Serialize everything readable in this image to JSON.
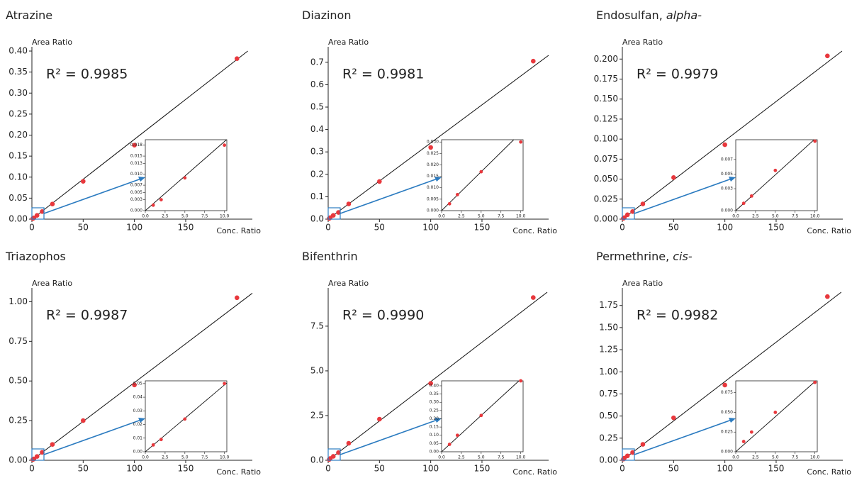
{
  "chart_data": [
    {
      "type": "scatter",
      "title": "Atrazine",
      "y_label": "Area Ratio",
      "x_label": "Conc. Ratio",
      "annotation": "R² = 0.9985",
      "color": "#e8383d",
      "x": [
        1,
        2,
        5,
        10,
        20,
        50,
        100,
        200
      ],
      "values": [
        0.0015,
        0.003,
        0.009,
        0.018,
        0.036,
        0.09,
        0.176,
        0.382
      ],
      "fit_slope": 0.0019,
      "xlim": [
        0,
        215
      ],
      "xticks": [
        0,
        50,
        100,
        150
      ],
      "ylim": [
        0,
        0.4
      ],
      "yticks": [
        {
          "value": 0,
          "label": "0.00"
        },
        0.05,
        {
          "value": 0.1,
          "label": "0.10"
        },
        0.15,
        {
          "value": 0.2,
          "label": "0.20"
        },
        0.25,
        {
          "value": 0.3,
          "label": "0.30"
        },
        0.35,
        {
          "value": 0.4,
          "label": "0.40"
        }
      ],
      "inset": {
        "xlim": [
          0,
          10.3
        ],
        "xticks": [
          {
            "value": 0,
            "label": "0.0"
          },
          2.5,
          {
            "value": 5,
            "label": "5.0"
          },
          7.5,
          {
            "value": 10,
            "label": "10.0"
          }
        ],
        "ylim": [
          0,
          0.0195
        ],
        "yticks": [
          {
            "value": 0,
            "label": "0.000"
          },
          0.003,
          0.005,
          0.007,
          {
            "value": 0.01,
            "label": "0.010"
          },
          0.013,
          0.015,
          0.018
        ]
      }
    },
    {
      "type": "scatter",
      "title": "Diazinon",
      "y_label": "Area Ratio",
      "x_label": "Conc. Ratio",
      "annotation": "R² = 0.9981",
      "color": "#e8383d",
      "x": [
        1,
        2,
        5,
        10,
        20,
        50,
        100,
        200
      ],
      "values": [
        0.003,
        0.007,
        0.017,
        0.03,
        0.068,
        0.168,
        0.32,
        0.705
      ],
      "fit_slope": 0.0034,
      "xlim": [
        0,
        215
      ],
      "xticks": [
        0,
        50,
        100,
        150
      ],
      "ylim": [
        0,
        0.75
      ],
      "yticks": [
        {
          "value": 0,
          "label": "0.0"
        },
        0.1,
        0.2,
        0.3,
        0.4,
        0.5,
        0.6,
        0.7
      ],
      "inset": {
        "xlim": [
          0,
          10.3
        ],
        "xticks": [
          {
            "value": 0,
            "label": "0.0"
          },
          2.5,
          {
            "value": 5,
            "label": "5.0"
          },
          7.5,
          {
            "value": 10,
            "label": "10.0"
          }
        ],
        "ylim": [
          0,
          0.031
        ],
        "yticks": [
          {
            "value": 0,
            "label": "0.000"
          },
          0.005,
          {
            "value": 0.01,
            "label": "0.010"
          },
          0.015,
          {
            "value": 0.02,
            "label": "0.020"
          },
          0.025,
          {
            "value": 0.03,
            "label": "0.030"
          }
        ]
      }
    },
    {
      "type": "scatter",
      "title": "Endosulfan, ",
      "title_italic": "alpha-",
      "y_label": "Area Ratio",
      "x_label": "Conc. Ratio",
      "annotation": "R² = 0.9979",
      "color": "#e8383d",
      "x": [
        1,
        2,
        5,
        10,
        20,
        50,
        100,
        200
      ],
      "values": [
        0.001,
        0.002,
        0.0055,
        0.0095,
        0.019,
        0.052,
        0.093,
        0.204
      ],
      "fit_slope": 0.00098,
      "xlim": [
        0,
        215
      ],
      "xticks": [
        0,
        50,
        100,
        150
      ],
      "ylim": [
        0,
        0.21
      ],
      "yticks": [
        {
          "value": 0,
          "label": "0.000"
        },
        0.025,
        {
          "value": 0.05,
          "label": "0.050"
        },
        0.075,
        {
          "value": 0.1,
          "label": "0.100"
        },
        0.125,
        {
          "value": 0.15,
          "label": "0.150"
        },
        0.175,
        {
          "value": 0.2,
          "label": "0.200"
        }
      ],
      "inset": {
        "xlim": [
          0,
          10.3
        ],
        "xticks": [
          {
            "value": 0,
            "label": "0.0"
          },
          2.5,
          {
            "value": 5,
            "label": "5.0"
          },
          7.5,
          {
            "value": 10,
            "label": "10.0"
          }
        ],
        "ylim": [
          0,
          0.0097
        ],
        "yticks": [
          {
            "value": 0,
            "label": "0.000"
          },
          0.003,
          0.005,
          0.007
        ]
      }
    },
    {
      "type": "scatter",
      "title": "Triazophos",
      "y_label": "Area Ratio",
      "x_label": "Conc. Ratio",
      "annotation": "R² = 0.9987",
      "color": "#e8383d",
      "x": [
        1,
        2,
        5,
        10,
        20,
        50,
        100,
        200
      ],
      "values": [
        0.005,
        0.009,
        0.024,
        0.05,
        0.1,
        0.25,
        0.475,
        1.025
      ],
      "fit_slope": 0.0049,
      "xlim": [
        0,
        215
      ],
      "xticks": [
        0,
        50,
        100,
        150
      ],
      "ylim": [
        0,
        1.06
      ],
      "yticks": [
        {
          "value": 0,
          "label": "0.00"
        },
        0.25,
        {
          "value": 0.5,
          "label": "0.50"
        },
        0.75,
        {
          "value": 1,
          "label": "1.00"
        }
      ],
      "inset": {
        "xlim": [
          0,
          10.3
        ],
        "xticks": [
          {
            "value": 0,
            "label": "0.0"
          },
          2.5,
          {
            "value": 5,
            "label": "5.0"
          },
          7.5,
          {
            "value": 10,
            "label": "10.0"
          }
        ],
        "ylim": [
          0,
          0.052
        ],
        "yticks": [
          {
            "value": 0,
            "label": "0.00"
          },
          0.01,
          0.02,
          0.03,
          0.04,
          0.05
        ]
      }
    },
    {
      "type": "scatter",
      "title": "Bifenthrin",
      "y_label": "Area Ratio",
      "x_label": "Conc. Ratio",
      "annotation": "R² = 0.9990",
      "color": "#e8383d",
      "x": [
        1,
        2,
        5,
        10,
        20,
        50,
        100,
        200
      ],
      "values": [
        0.045,
        0.1,
        0.22,
        0.43,
        0.95,
        2.3,
        4.3,
        9.1
      ],
      "fit_slope": 0.044,
      "xlim": [
        0,
        215
      ],
      "xticks": [
        0,
        50,
        100,
        150
      ],
      "ylim": [
        0,
        9.4
      ],
      "yticks": [
        {
          "value": 0,
          "label": "0.0"
        },
        2.5,
        {
          "value": 5,
          "label": "5.0"
        },
        7.5
      ],
      "inset": {
        "xlim": [
          0,
          10.3
        ],
        "xticks": [
          {
            "value": 0,
            "label": "0.0"
          },
          2.5,
          {
            "value": 5,
            "label": "5.0"
          },
          7.5,
          {
            "value": 10,
            "label": "10.0"
          }
        ],
        "ylim": [
          0,
          0.43
        ],
        "yticks": [
          {
            "value": 0,
            "label": "0.00"
          },
          0.05,
          {
            "value": 0.1,
            "label": "0.10"
          },
          0.15,
          {
            "value": 0.2,
            "label": "0.20"
          },
          0.25,
          {
            "value": 0.3,
            "label": "0.30"
          },
          0.35,
          {
            "value": 0.4,
            "label": "0.40"
          }
        ]
      }
    },
    {
      "type": "scatter",
      "title": "Permethrine, ",
      "title_italic": "cis-",
      "y_label": "Area Ratio",
      "x_label": "Conc. Ratio",
      "annotation": "R² = 0.9982",
      "color": "#e8383d",
      "x": [
        1,
        2,
        5,
        10,
        20,
        50,
        100,
        200
      ],
      "values": [
        0.013,
        0.025,
        0.05,
        0.088,
        0.18,
        0.48,
        0.85,
        1.85
      ],
      "fit_slope": 0.0089,
      "xlim": [
        0,
        215
      ],
      "xticks": [
        0,
        50,
        100,
        150
      ],
      "ylim": [
        0,
        1.9
      ],
      "yticks": [
        {
          "value": 0,
          "label": "0.00"
        },
        0.25,
        {
          "value": 0.5,
          "label": "0.50"
        },
        0.75,
        {
          "value": 1,
          "label": "1.00"
        },
        1.25,
        {
          "value": 1.5,
          "label": "1.50"
        },
        1.75
      ],
      "inset": {
        "xlim": [
          0,
          10.3
        ],
        "xticks": [
          {
            "value": 0,
            "label": "0.0"
          },
          2.5,
          {
            "value": 5,
            "label": "5.0"
          },
          7.5,
          {
            "value": 10,
            "label": "10.0"
          }
        ],
        "ylim": [
          0,
          0.09
        ],
        "yticks": [
          {
            "value": 0,
            "label": "0.000"
          },
          0.025,
          {
            "value": 0.05,
            "label": "0.050"
          },
          0.075
        ]
      }
    }
  ]
}
